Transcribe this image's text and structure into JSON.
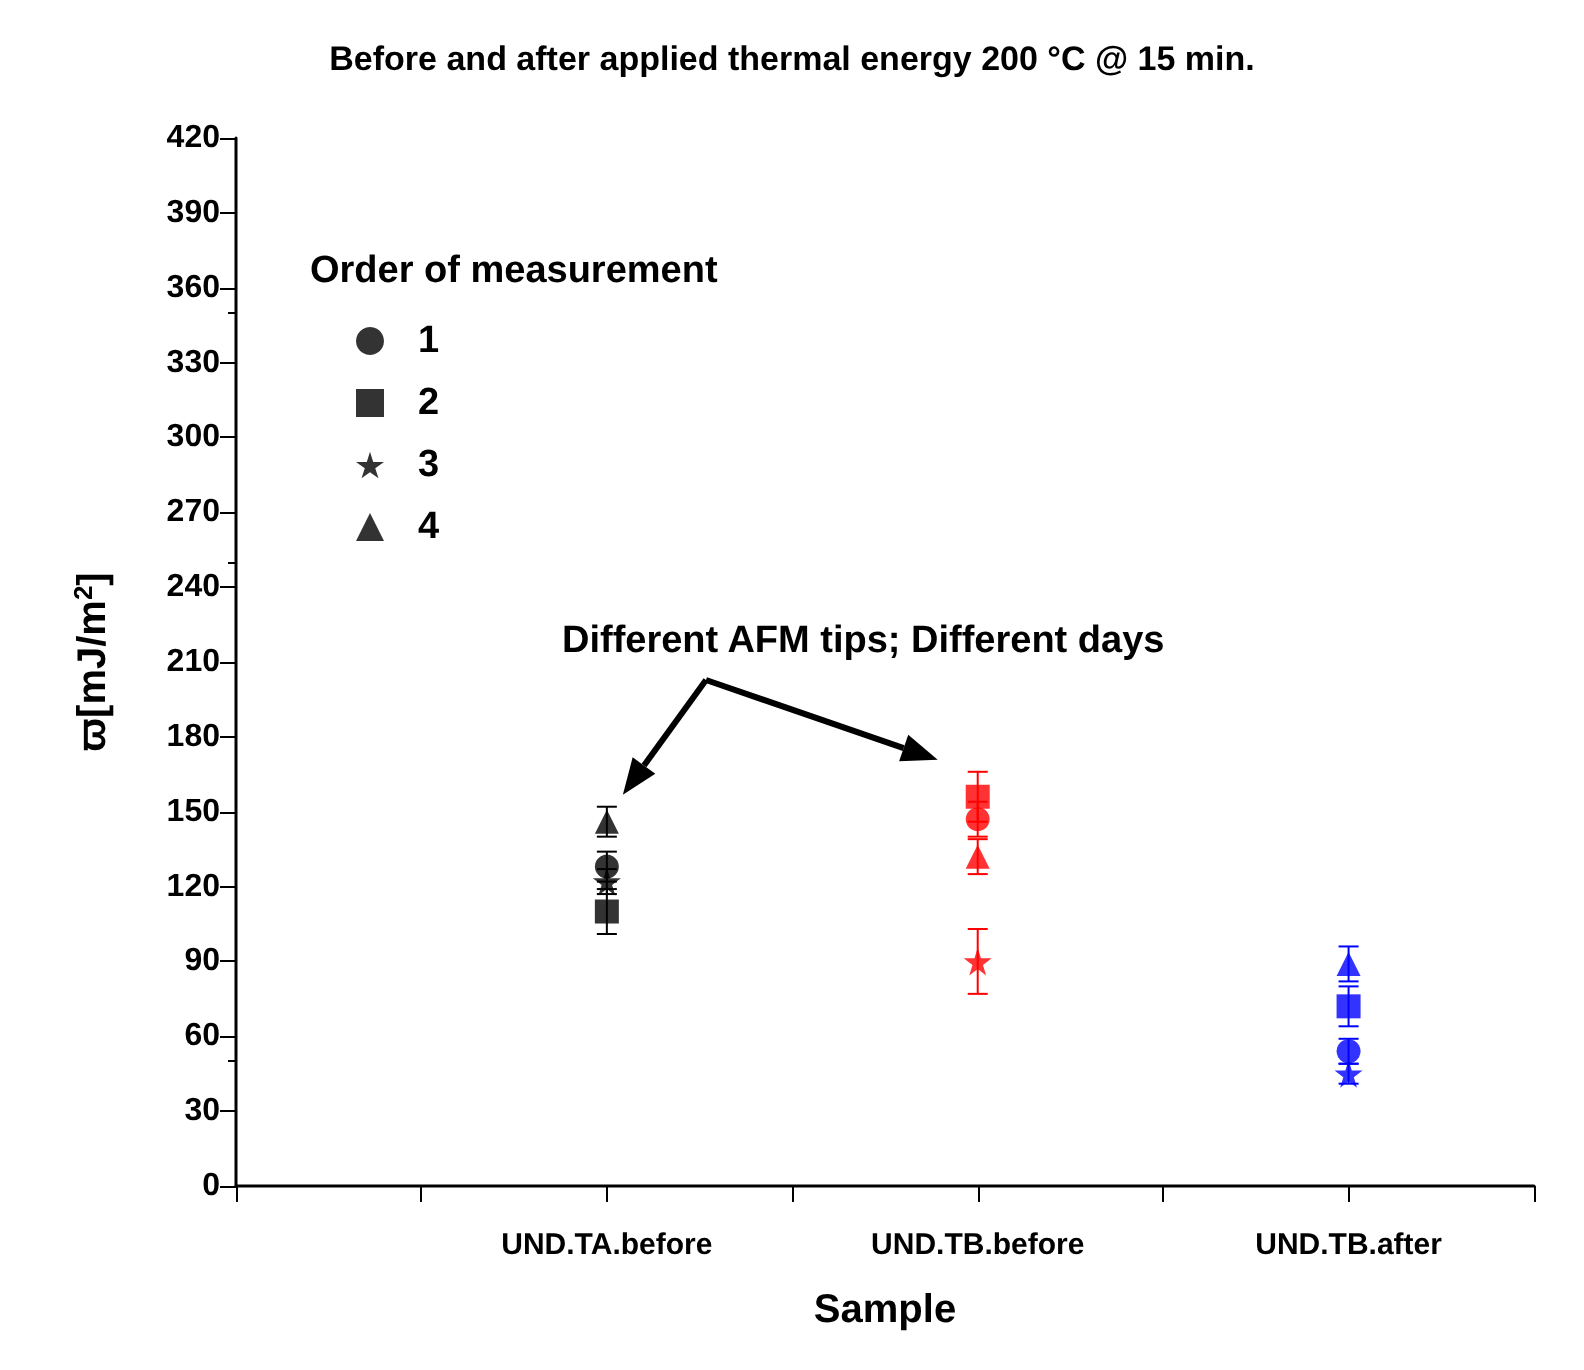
{
  "chart_data": {
    "type": "scatter",
    "title": "Before and after applied thermal energy 200 °C @ 15 min.",
    "xlabel": "Sample",
    "ylabel": "ϖ[mJ/m$^{2}$]",
    "legend_title": "Order of measurement",
    "categories": [
      null,
      null,
      "UND.TA.before",
      null,
      "UND.TB.before",
      null,
      "UND.TB.after",
      null
    ],
    "series": [
      {
        "name": "1",
        "marker": "circle",
        "colors": [
          null,
          null,
          "#000000",
          null,
          "#ff0000",
          null,
          "#0000ff",
          null
        ],
        "values": [
          null,
          null,
          128,
          null,
          147,
          null,
          54,
          null
        ],
        "errors": [
          null,
          null,
          6,
          null,
          7,
          null,
          5,
          null
        ]
      },
      {
        "name": "2",
        "marker": "square",
        "colors": [
          null,
          null,
          "#000000",
          null,
          "#ff0000",
          null,
          "#0000ff",
          null
        ],
        "values": [
          null,
          null,
          110,
          null,
          156,
          null,
          72,
          null
        ],
        "errors": [
          null,
          null,
          9,
          null,
          10,
          null,
          8,
          null
        ]
      },
      {
        "name": "3",
        "marker": "star",
        "colors": [
          null,
          null,
          "#000000",
          null,
          "#ff0000",
          null,
          "#0000ff",
          null
        ],
        "values": [
          null,
          null,
          122,
          null,
          90,
          null,
          45,
          null
        ],
        "errors": [
          null,
          null,
          5,
          null,
          13,
          null,
          4,
          null
        ]
      },
      {
        "name": "4",
        "marker": "triangle",
        "colors": [
          null,
          null,
          "#000000",
          null,
          "#ff0000",
          null,
          "#0000ff",
          null
        ],
        "values": [
          null,
          null,
          146,
          null,
          132,
          null,
          89,
          null
        ],
        "errors": [
          null,
          null,
          6,
          null,
          7,
          null,
          7,
          null
        ]
      }
    ],
    "annotations": [
      "Different AFM tips; Different days"
    ],
    "ylim": [
      0,
      420
    ],
    "yticks": [
      0,
      30,
      60,
      90,
      120,
      150,
      180,
      210,
      240,
      270,
      300,
      330,
      360,
      390,
      420
    ],
    "grid": false,
    "legend": "top left"
  }
}
